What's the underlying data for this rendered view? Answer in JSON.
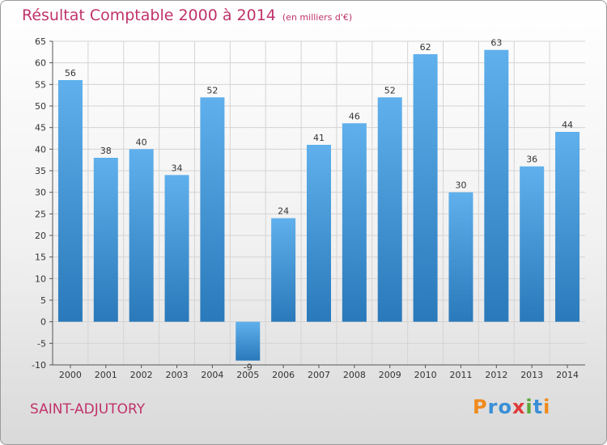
{
  "header": {
    "title": "Résultat Comptable 2000 à 2014",
    "subtitle": "(en milliers d'€)"
  },
  "footer": {
    "commune": "SAINT-ADJUTORY",
    "logo_letters": [
      "P",
      "r",
      "o",
      "x",
      "i",
      "t",
      "i"
    ],
    "logo_colors": [
      "#f08a1c",
      "#3a8fd6",
      "#3a8fd6",
      "#e03a3a",
      "#5aa83a",
      "#3a8fd6",
      "#f08a1c"
    ]
  },
  "chart_data": {
    "type": "bar",
    "categories": [
      "2000",
      "2001",
      "2002",
      "2003",
      "2004",
      "2005",
      "2006",
      "2007",
      "2008",
      "2009",
      "2010",
      "2011",
      "2012",
      "2013",
      "2014"
    ],
    "values": [
      56,
      38,
      40,
      34,
      52,
      -9,
      24,
      41,
      46,
      52,
      62,
      30,
      63,
      36,
      44
    ],
    "ylim": [
      -10,
      65
    ],
    "yticks": [
      -10,
      -5,
      0,
      5,
      10,
      15,
      20,
      25,
      30,
      35,
      40,
      45,
      50,
      55,
      60,
      65
    ],
    "grid": true,
    "bar_color_top": "#5fb0ec",
    "bar_color_bottom": "#2a79ba"
  }
}
